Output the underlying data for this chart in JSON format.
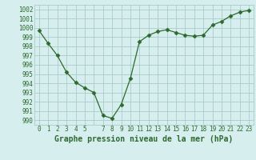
{
  "x": [
    0,
    1,
    2,
    3,
    4,
    5,
    6,
    7,
    8,
    9,
    10,
    11,
    12,
    13,
    14,
    15,
    16,
    17,
    18,
    19,
    20,
    21,
    22,
    23
  ],
  "y": [
    999.7,
    998.3,
    997.0,
    995.2,
    994.1,
    993.5,
    993.0,
    990.5,
    990.2,
    991.7,
    994.5,
    998.5,
    999.2,
    999.6,
    999.8,
    999.5,
    999.2,
    999.1,
    999.2,
    1000.3,
    1000.7,
    1001.3,
    1001.7,
    1001.9
  ],
  "line_color": "#2d6a2d",
  "marker": "D",
  "marker_size": 2.5,
  "bg_color": "#d6eeee",
  "grid_color": "#aacccc",
  "xlabel": "Graphe pression niveau de la mer (hPa)",
  "ylim": [
    989.5,
    1002.5
  ],
  "yticks": [
    990,
    991,
    992,
    993,
    994,
    995,
    996,
    997,
    998,
    999,
    1000,
    1001,
    1002
  ],
  "tick_fontsize": 5.5,
  "xlabel_fontsize": 7.0,
  "linewidth": 0.9
}
